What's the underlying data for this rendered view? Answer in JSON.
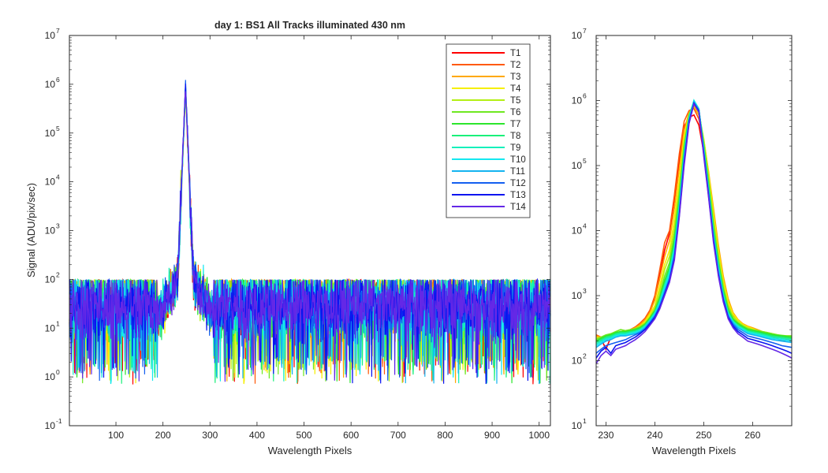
{
  "chart_data": [
    {
      "type": "line",
      "title": "day 1: BS1   All Tracks illuminated   430 nm",
      "xlabel": "Wavelength Pixels",
      "ylabel": "Signal (ADU/pix/sec)",
      "xlim": [
        1,
        1024
      ],
      "ylim": [
        0.1,
        10000000
      ],
      "yscale": "log",
      "xticks": [
        100,
        200,
        300,
        400,
        500,
        600,
        700,
        800,
        900,
        1000
      ],
      "yticks": [
        {
          "value": 0.1,
          "base": "10",
          "exp": "-1"
        },
        {
          "value": 1,
          "base": "10",
          "exp": "0"
        },
        {
          "value": 10,
          "base": "10",
          "exp": "1"
        },
        {
          "value": 100,
          "base": "10",
          "exp": "2"
        },
        {
          "value": 1000,
          "base": "10",
          "exp": "3"
        },
        {
          "value": 10000,
          "base": "10",
          "exp": "4"
        },
        {
          "value": 100000,
          "base": "10",
          "exp": "5"
        },
        {
          "value": 1000000,
          "base": "10",
          "exp": "6"
        },
        {
          "value": 10000000,
          "base": "10",
          "exp": "7"
        }
      ],
      "legend": "top-right",
      "peak": {
        "x": 248,
        "y": 1000000
      },
      "noise": {
        "baseline": 30,
        "near_peak_floor": 150,
        "min": 0.7
      },
      "series": [
        {
          "name": "T1",
          "color": "#ff0000"
        },
        {
          "name": "T2",
          "color": "#ff5a0a"
        },
        {
          "name": "T3",
          "color": "#ffa800"
        },
        {
          "name": "T4",
          "color": "#f6ef00"
        },
        {
          "name": "T5",
          "color": "#b3ef14"
        },
        {
          "name": "T6",
          "color": "#6ee820"
        },
        {
          "name": "T7",
          "color": "#2ce62c"
        },
        {
          "name": "T8",
          "color": "#1af07a"
        },
        {
          "name": "T9",
          "color": "#14f0bb"
        },
        {
          "name": "T10",
          "color": "#14e8f0"
        },
        {
          "name": "T11",
          "color": "#14b4f0"
        },
        {
          "name": "T12",
          "color": "#145ff0"
        },
        {
          "name": "T13",
          "color": "#0a14f0"
        },
        {
          "name": "T14",
          "color": "#6428e6"
        }
      ]
    },
    {
      "type": "line",
      "xlabel": "Wavelength Pixels",
      "xlim": [
        228,
        268
      ],
      "ylim": [
        10,
        10000000
      ],
      "yscale": "log",
      "xticks": [
        230,
        240,
        250,
        260
      ],
      "yticks": [
        {
          "value": 10,
          "base": "10",
          "exp": "1"
        },
        {
          "value": 100,
          "base": "10",
          "exp": "2"
        },
        {
          "value": 1000,
          "base": "10",
          "exp": "3"
        },
        {
          "value": 10000,
          "base": "10",
          "exp": "4"
        },
        {
          "value": 100000,
          "base": "10",
          "exp": "5"
        },
        {
          "value": 1000000,
          "base": "10",
          "exp": "6"
        },
        {
          "value": 10000000,
          "base": "10",
          "exp": "7"
        }
      ],
      "x": [
        228,
        229,
        230,
        231,
        232,
        233,
        234,
        235,
        236,
        237,
        238,
        239,
        240,
        241,
        242,
        243,
        244,
        245,
        246,
        247,
        248,
        249,
        250,
        251,
        252,
        253,
        254,
        255,
        256,
        257,
        258,
        259,
        260,
        261,
        262,
        263,
        264,
        265,
        266,
        267,
        268
      ],
      "series": [
        {
          "name": "T1",
          "values": [
            240,
            220,
            150,
            230,
            250,
            280,
            260,
            300,
            320,
            360,
            420,
            550,
            900,
            2000,
            5000,
            9000,
            30000,
            120000,
            400000,
            550000,
            600000,
            420000,
            160000,
            60000,
            18000,
            5000,
            1800,
            800,
            500,
            400,
            340,
            320,
            300,
            280,
            260,
            250,
            230,
            220,
            200,
            210,
            200
          ]
        },
        {
          "name": "T2",
          "values": [
            250,
            230,
            200,
            240,
            260,
            280,
            270,
            300,
            330,
            380,
            450,
            600,
            1000,
            2500,
            6500,
            10000,
            35000,
            150000,
            480000,
            700000,
            750000,
            520000,
            200000,
            70000,
            20000,
            5500,
            1900,
            850,
            520,
            420,
            360,
            330,
            310,
            290,
            270,
            260,
            240,
            230,
            220,
            215,
            210
          ]
        },
        {
          "name": "T3",
          "values": [
            240,
            230,
            220,
            250,
            260,
            270,
            280,
            300,
            320,
            360,
            420,
            550,
            850,
            1800,
            4000,
            7000,
            22000,
            90000,
            350000,
            650000,
            800000,
            600000,
            250000,
            80000,
            22000,
            6000,
            2000,
            900,
            550,
            430,
            370,
            340,
            320,
            300,
            280,
            270,
            250,
            240,
            230,
            220,
            215
          ]
        },
        {
          "name": "T4",
          "values": [
            230,
            220,
            220,
            240,
            250,
            260,
            270,
            290,
            310,
            340,
            400,
            520,
            700,
            1400,
            3000,
            5000,
            15000,
            60000,
            280000,
            620000,
            850000,
            640000,
            260000,
            75000,
            18000,
            5000,
            1700,
            800,
            520,
            420,
            360,
            330,
            310,
            290,
            280,
            270,
            260,
            250,
            240,
            230,
            230
          ]
        },
        {
          "name": "T5",
          "values": [
            220,
            230,
            240,
            260,
            270,
            280,
            290,
            300,
            310,
            340,
            380,
            480,
            650,
            1200,
            2500,
            4000,
            11000,
            45000,
            230000,
            600000,
            900000,
            680000,
            240000,
            65000,
            15000,
            4200,
            1500,
            700,
            480,
            400,
            350,
            320,
            300,
            290,
            280,
            270,
            260,
            250,
            240,
            240,
            240
          ]
        },
        {
          "name": "T6",
          "values": [
            210,
            230,
            250,
            260,
            280,
            300,
            290,
            300,
            310,
            330,
            370,
            460,
            600,
            1000,
            2000,
            3200,
            8500,
            36000,
            200000,
            600000,
            950000,
            700000,
            220000,
            55000,
            12000,
            3500,
            1300,
            650,
            450,
            380,
            340,
            310,
            300,
            290,
            280,
            270,
            260,
            250,
            245,
            240,
            240
          ]
        },
        {
          "name": "T7",
          "values": [
            200,
            220,
            240,
            250,
            270,
            280,
            280,
            290,
            300,
            320,
            360,
            450,
            580,
            900,
            1700,
            2800,
            7000,
            30000,
            180000,
            580000,
            980000,
            720000,
            210000,
            50000,
            11000,
            3200,
            1200,
            600,
            430,
            370,
            330,
            300,
            290,
            280,
            270,
            260,
            250,
            245,
            240,
            235,
            230
          ]
        },
        {
          "name": "T8",
          "values": [
            190,
            210,
            230,
            240,
            260,
            270,
            270,
            280,
            290,
            310,
            350,
            430,
            560,
            850,
            1500,
            2500,
            6000,
            26000,
            160000,
            560000,
            1000000,
            740000,
            200000,
            46000,
            10000,
            3000,
            1100,
            560,
            410,
            350,
            320,
            290,
            280,
            270,
            260,
            250,
            240,
            235,
            230,
            225,
            220
          ]
        },
        {
          "name": "T9",
          "values": [
            180,
            200,
            220,
            230,
            250,
            260,
            260,
            270,
            280,
            300,
            340,
            420,
            540,
            800,
            1400,
            2300,
            5500,
            24000,
            150000,
            540000,
            1000000,
            750000,
            190000,
            42000,
            9000,
            2800,
            1050,
            540,
            400,
            340,
            310,
            280,
            270,
            260,
            250,
            240,
            230,
            225,
            220,
            215,
            210
          ]
        },
        {
          "name": "T10",
          "values": [
            170,
            190,
            210,
            220,
            240,
            250,
            250,
            260,
            270,
            290,
            330,
            410,
            520,
            760,
            1300,
            2100,
            5000,
            22000,
            140000,
            520000,
            1000000,
            740000,
            180000,
            40000,
            8500,
            2600,
            1000,
            520,
            390,
            330,
            300,
            270,
            260,
            250,
            240,
            230,
            220,
            215,
            210,
            205,
            200
          ]
        },
        {
          "name": "T11",
          "values": [
            160,
            180,
            200,
            210,
            230,
            240,
            240,
            250,
            260,
            280,
            320,
            400,
            500,
            720,
            1200,
            1900,
            4500,
            20000,
            130000,
            500000,
            950000,
            720000,
            170000,
            38000,
            8000,
            2400,
            950,
            500,
            380,
            320,
            290,
            260,
            250,
            240,
            230,
            220,
            210,
            205,
            200,
            195,
            190
          ]
        },
        {
          "name": "T12",
          "values": [
            130,
            150,
            170,
            180,
            190,
            200,
            210,
            230,
            250,
            270,
            310,
            380,
            480,
            680,
            1100,
            1800,
            4000,
            18000,
            120000,
            480000,
            920000,
            700000,
            160000,
            36000,
            7500,
            2200,
            900,
            480,
            360,
            300,
            270,
            240,
            230,
            220,
            210,
            200,
            190,
            180,
            170,
            165,
            160
          ]
        },
        {
          "name": "T13",
          "values": [
            110,
            140,
            160,
            130,
            170,
            180,
            190,
            210,
            230,
            260,
            300,
            370,
            460,
            650,
            1050,
            1700,
            3800,
            17000,
            110000,
            460000,
            900000,
            680000,
            150000,
            34000,
            7000,
            2100,
            850,
            460,
            340,
            280,
            250,
            220,
            210,
            200,
            190,
            180,
            170,
            160,
            150,
            140,
            130
          ]
        },
        {
          "name": "T14",
          "values": [
            90,
            120,
            140,
            120,
            150,
            160,
            170,
            190,
            210,
            240,
            280,
            350,
            440,
            620,
            1000,
            1600,
            3500,
            16000,
            100000,
            440000,
            880000,
            660000,
            140000,
            32000,
            6500,
            2000,
            800,
            440,
            320,
            260,
            230,
            200,
            190,
            180,
            170,
            160,
            150,
            140,
            130,
            120,
            110
          ]
        }
      ]
    }
  ]
}
